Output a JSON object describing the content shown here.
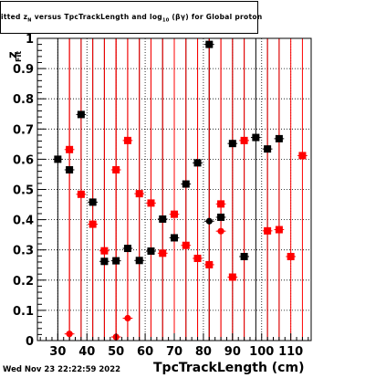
{
  "chart_data": {
    "type": "scatter",
    "title_parts": {
      "a": "itted  z",
      "a_sub": "N",
      "b": "  versus  TpcTrackLength and log",
      "b_sub": "10",
      "c": " (βγ) for Global proton"
    },
    "xlabel": "TpcTrackLength (cm)",
    "ylabel": "z",
    "ylabel_sub": "Fit",
    "xlim": [
      23,
      117
    ],
    "ylim": [
      0,
      1
    ],
    "x_ticks": [
      "30",
      "40",
      "50",
      "60",
      "70",
      "80",
      "90",
      "100",
      "110"
    ],
    "y_ticks": [
      "0",
      "0.1",
      "0.2",
      "0.3",
      "0.4",
      "0.5",
      "0.6",
      "0.7",
      "0.8",
      "0.9",
      "1"
    ],
    "grid": true,
    "x_bin_edges": [
      28,
      32,
      36,
      40,
      44,
      48,
      52,
      56,
      60,
      64,
      68,
      72,
      76,
      80,
      84,
      88,
      92,
      96,
      100,
      104,
      108,
      112,
      116
    ],
    "series": [
      {
        "color": "#000000",
        "marker": "square",
        "points": [
          {
            "x": 30,
            "y": 0.6
          },
          {
            "x": 34,
            "y": 0.565
          },
          {
            "x": 38,
            "y": 0.748
          },
          {
            "x": 42,
            "y": 0.458
          },
          {
            "x": 46,
            "y": 0.262
          },
          {
            "x": 50,
            "y": 0.264
          },
          {
            "x": 54,
            "y": 0.305
          },
          {
            "x": 58,
            "y": 0.265
          },
          {
            "x": 62,
            "y": 0.296
          },
          {
            "x": 66,
            "y": 0.402
          },
          {
            "x": 70,
            "y": 0.34
          },
          {
            "x": 74,
            "y": 0.518
          },
          {
            "x": 78,
            "y": 0.588
          },
          {
            "x": 82,
            "y": 0.98
          },
          {
            "x": 82,
            "y": 0.395,
            "shape": "circle"
          },
          {
            "x": 86,
            "y": 0.408
          },
          {
            "x": 90,
            "y": 0.652
          },
          {
            "x": 94,
            "y": 0.278
          },
          {
            "x": 98,
            "y": 0.672
          },
          {
            "x": 102,
            "y": 0.634
          },
          {
            "x": 106,
            "y": 0.668
          }
        ]
      },
      {
        "color": "#ff0000",
        "marker": "square",
        "points": [
          {
            "x": 34,
            "y": 0.632
          },
          {
            "x": 34,
            "y": 0.022,
            "shape": "circle"
          },
          {
            "x": 38,
            "y": 0.484
          },
          {
            "x": 42,
            "y": 0.385
          },
          {
            "x": 46,
            "y": 0.297
          },
          {
            "x": 50,
            "y": 0.565
          },
          {
            "x": 50,
            "y": 0.012,
            "shape": "circle"
          },
          {
            "x": 54,
            "y": 0.662
          },
          {
            "x": 54,
            "y": 0.074,
            "shape": "circle"
          },
          {
            "x": 58,
            "y": 0.486
          },
          {
            "x": 62,
            "y": 0.455
          },
          {
            "x": 66,
            "y": 0.289
          },
          {
            "x": 70,
            "y": 0.418
          },
          {
            "x": 74,
            "y": 0.315
          },
          {
            "x": 78,
            "y": 0.272
          },
          {
            "x": 82,
            "y": 0.251
          },
          {
            "x": 86,
            "y": 0.452
          },
          {
            "x": 86,
            "y": 0.362,
            "shape": "circle"
          },
          {
            "x": 90,
            "y": 0.21
          },
          {
            "x": 94,
            "y": 0.662
          },
          {
            "x": 102,
            "y": 0.363
          },
          {
            "x": 106,
            "y": 0.367
          },
          {
            "x": 110,
            "y": 0.278
          },
          {
            "x": 114,
            "y": 0.612
          }
        ]
      }
    ]
  },
  "footer": {
    "datestamp": "Wed Nov 23 22:22:59 2022"
  }
}
